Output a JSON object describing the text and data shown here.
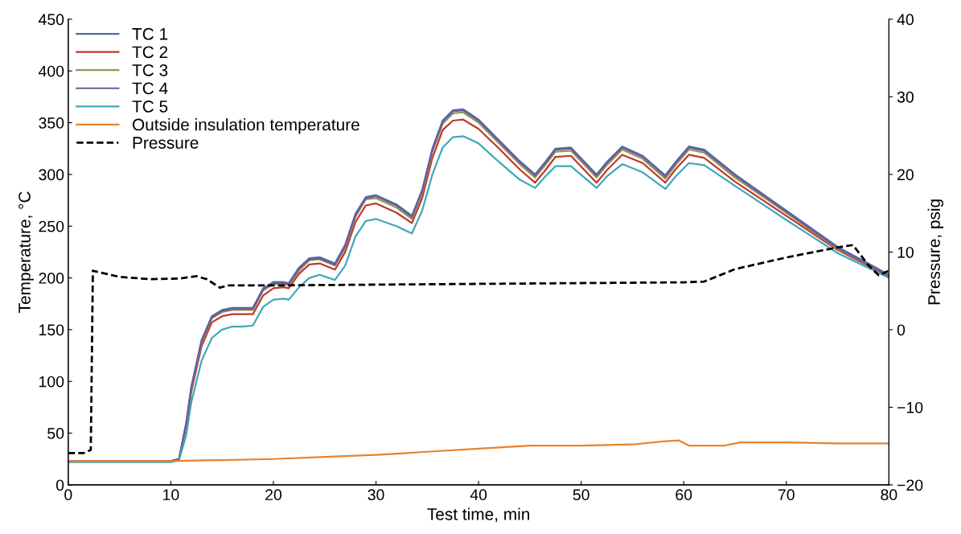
{
  "chart_data": {
    "type": "line",
    "xlabel": "Test time, min",
    "ylabel": "Temperature, °C",
    "y2label": "Pressure, psig",
    "x": [
      0,
      5,
      10,
      10.8,
      11.5,
      12,
      13,
      14,
      15,
      16,
      17,
      18,
      19,
      20,
      21,
      21.5,
      22.5,
      23.5,
      24.5,
      26,
      27,
      28,
      29,
      30,
      32,
      33.5,
      34.5,
      35.5,
      36.5,
      37.5,
      38.5,
      40,
      42,
      44,
      45.5,
      46.5,
      47.5,
      49,
      51.5,
      52.5,
      54,
      56,
      58.2,
      59.2,
      60.5,
      62,
      65,
      70,
      75,
      80
    ],
    "xlim": [
      0,
      80
    ],
    "xticks": [
      0,
      10,
      20,
      30,
      40,
      50,
      60,
      70,
      80
    ],
    "ylim": [
      0,
      450
    ],
    "yticks": [
      0,
      50,
      100,
      150,
      200,
      250,
      300,
      350,
      400,
      450
    ],
    "y2lim": [
      -20,
      40
    ],
    "y2ticks": [
      {
        "value": -20,
        "label": "−20"
      },
      {
        "value": -10,
        "label": "−10"
      },
      0,
      10,
      20,
      30,
      40
    ],
    "legend": "top left",
    "grid": false,
    "series": [
      {
        "name": "TC 1",
        "color": "#4a6fa5",
        "values": [
          23,
          23,
          23,
          25,
          60,
          95,
          140,
          163,
          169,
          171,
          171,
          171,
          190,
          196,
          196,
          195,
          210,
          219,
          220,
          214,
          232,
          262,
          278,
          280,
          271,
          260,
          285,
          325,
          352,
          362,
          363,
          353,
          333,
          313,
          300,
          312,
          325,
          326,
          300,
          312,
          327,
          318,
          299,
          312,
          327,
          324,
          300,
          265,
          230,
          203
        ]
      },
      {
        "name": "TC 2",
        "color": "#c0392b",
        "values": [
          23,
          23,
          23,
          25,
          56,
          90,
          134,
          157,
          163,
          165,
          165,
          165,
          183,
          190,
          191,
          190,
          204,
          213,
          214,
          208,
          225,
          254,
          270,
          272,
          263,
          253,
          277,
          316,
          343,
          352,
          353,
          344,
          325,
          305,
          292,
          304,
          317,
          318,
          292,
          304,
          319,
          311,
          292,
          305,
          319,
          316,
          293,
          260,
          227,
          201
        ]
      },
      {
        "name": "TC 3",
        "color": "#8f9a50",
        "values": [
          23,
          23,
          23,
          25,
          58,
          93,
          137,
          161,
          167,
          169,
          169,
          169,
          188,
          194,
          194,
          193,
          207,
          217,
          218,
          212,
          229,
          259,
          276,
          277,
          268,
          257,
          282,
          322,
          349,
          359,
          360,
          350,
          330,
          310,
          297,
          309,
          322,
          323,
          297,
          309,
          324,
          315,
          296,
          309,
          324,
          321,
          297,
          263,
          228,
          202
        ]
      },
      {
        "name": "TC 4",
        "color": "#6e5a9e",
        "values": [
          23,
          23,
          23,
          25,
          59,
          94,
          139,
          162,
          168,
          170,
          170,
          170,
          189,
          195,
          195,
          194,
          209,
          218,
          219,
          213,
          231,
          261,
          277,
          279,
          270,
          259,
          284,
          324,
          351,
          361,
          362,
          352,
          332,
          312,
          299,
          311,
          324,
          325,
          299,
          311,
          326,
          317,
          298,
          311,
          326,
          323,
          299,
          264,
          229,
          202
        ]
      },
      {
        "name": "TC 5",
        "color": "#3fa8b8",
        "values": [
          22,
          22,
          22,
          24,
          48,
          80,
          120,
          142,
          150,
          153,
          153,
          154,
          172,
          179,
          180,
          179,
          191,
          200,
          203,
          198,
          212,
          240,
          255,
          257,
          250,
          243,
          265,
          300,
          326,
          336,
          337,
          330,
          312,
          295,
          287,
          298,
          308,
          308,
          287,
          298,
          310,
          302,
          286,
          298,
          311,
          309,
          289,
          256,
          224,
          200
        ]
      },
      {
        "name": "Outside insulation temperature",
        "color": "#e8822e",
        "x": [
          0,
          10,
          15,
          20,
          25,
          30,
          35,
          40,
          45,
          50,
          55,
          58,
          59.5,
          60.5,
          64,
          65.5,
          70,
          75,
          80
        ],
        "values": [
          23,
          23,
          24,
          25,
          27,
          29,
          32,
          35,
          38,
          38,
          39,
          42,
          43,
          38,
          38,
          41,
          41,
          40,
          40
        ]
      },
      {
        "name": "Pressure",
        "color": "#000000",
        "axis": "y2",
        "line_style": "dashed",
        "x": [
          0,
          1.5,
          2.2,
          2.4,
          3,
          5,
          8,
          11,
          12.5,
          13.5,
          14.8,
          15.5,
          20,
          30,
          40,
          50,
          60,
          62,
          65,
          70,
          75,
          76.5,
          78,
          79,
          80
        ],
        "values": [
          -15.9,
          -15.9,
          -15.5,
          7.6,
          7.4,
          6.8,
          6.5,
          6.6,
          6.9,
          6.5,
          5.4,
          5.7,
          5.7,
          5.8,
          5.9,
          6.0,
          6.1,
          6.2,
          7.8,
          9.3,
          10.6,
          10.9,
          8.3,
          7.0,
          7.6
        ]
      }
    ]
  }
}
